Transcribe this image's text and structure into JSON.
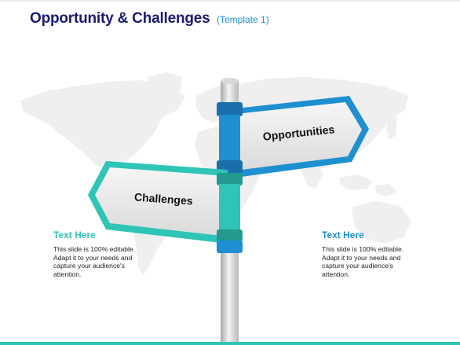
{
  "header": {
    "title": "Opportunity & Challenges",
    "subtitle": "(Template 1)"
  },
  "signpost": {
    "right_sign_label": "Opportunities",
    "left_sign_label": "Challenges"
  },
  "left_text": {
    "heading": "Text Here",
    "lines": [
      "This slide is 100% editable.",
      "Adapt it to your needs and",
      "capture your audience's",
      "attention."
    ]
  },
  "right_text": {
    "heading": "Text Here",
    "lines": [
      "This slide is 100% editable.",
      "Adapt it to your needs and",
      "capture your audience's",
      "attention."
    ]
  },
  "colors": {
    "title": "#1a1b6e",
    "subtitle": "#1e8fd0",
    "teal": "#2ec4b6",
    "blue": "#1e8fd0",
    "map": "#efefef"
  }
}
